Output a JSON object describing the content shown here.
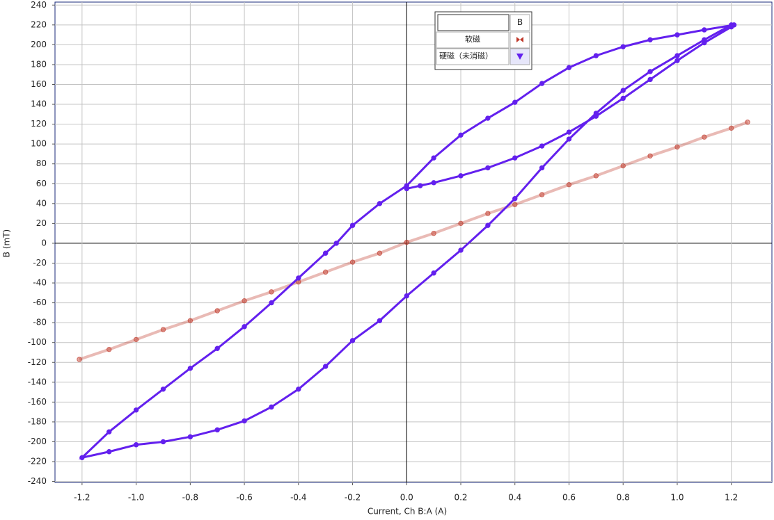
{
  "chart_data": {
    "type": "scatter",
    "x_label": "Current, Ch B:A (A)",
    "y_label": "B (mT)",
    "legend_title": "B",
    "xlim": [
      -1.3,
      1.35
    ],
    "ylim": [
      -241,
      243
    ],
    "xticks": [
      -1.2,
      {
        "value": -1,
        "label": "-1.0"
      },
      -0.8,
      -0.6,
      -0.4,
      -0.2,
      {
        "value": 0,
        "label": "0.0"
      },
      0.2,
      0.4,
      0.6,
      0.8,
      {
        "value": 1,
        "label": "1.0"
      },
      1.2
    ],
    "yticks": [
      -240,
      -220,
      -200,
      -180,
      -160,
      -140,
      -120,
      -100,
      -80,
      -60,
      -40,
      -20,
      0,
      20,
      40,
      60,
      80,
      100,
      120,
      140,
      160,
      180,
      200,
      220,
      240
    ],
    "grid": true,
    "series": [
      {
        "name": "软磁",
        "color": "#c0392b",
        "marker": "bowtie",
        "x": [
          -1.21,
          -1.1,
          -1.0,
          -0.9,
          -0.8,
          -0.7,
          -0.6,
          -0.5,
          -0.4,
          -0.3,
          -0.2,
          -0.1,
          0,
          0.1,
          0.2,
          0.3,
          0.4,
          0.5,
          0.6,
          0.7,
          0.8,
          0.9,
          1.0,
          1.1,
          1.2,
          1.26
        ],
        "values": [
          -117,
          -107,
          -97,
          -87,
          -78,
          -68,
          -58,
          -49,
          -39,
          -29,
          -19,
          -10,
          1,
          10,
          20,
          30,
          39,
          49,
          59,
          68,
          78,
          88,
          97,
          107,
          116,
          122
        ]
      },
      {
        "name": "硬磁（未消磁）",
        "color": "#6320ee",
        "marker": "triangle",
        "x": [
          0,
          0.05,
          0.1,
          0.2,
          0.3,
          0.4,
          0.5,
          0.6,
          0.7,
          0.8,
          0.9,
          1.0,
          1.1,
          1.2,
          1.21,
          1.1,
          1.0,
          0.9,
          0.8,
          0.7,
          0.6,
          0.5,
          0.4,
          0.3,
          0.2,
          0.1,
          0.0,
          -0.1,
          -0.2,
          -0.26,
          -0.3,
          -0.4,
          -0.5,
          -0.6,
          -0.7,
          -0.8,
          -0.9,
          -1.0,
          -1.1,
          -1.2,
          -1.1,
          -1.0,
          -0.9,
          -0.8,
          -0.7,
          -0.6,
          -0.5,
          -0.4,
          -0.3,
          -0.2,
          -0.1,
          0.0,
          0.1,
          0.2,
          0.3,
          0.4,
          0.5,
          0.6,
          0.7,
          0.8,
          0.9,
          1.0,
          1.1,
          1.2
        ],
        "values": [
          55,
          58,
          61,
          68,
          76,
          86,
          98,
          112,
          128,
          146,
          165,
          184,
          202,
          218,
          220,
          215,
          210,
          205,
          198,
          189,
          177,
          161,
          142,
          126,
          109,
          86,
          58,
          40,
          18,
          0,
          -10,
          -35,
          -60,
          -84,
          -106,
          -126,
          -147,
          -168,
          -190,
          -216,
          -210,
          -203,
          -200,
          -195,
          -188,
          -179,
          -165,
          -147,
          -124,
          -98,
          -78,
          -53,
          -30,
          -7,
          18,
          45,
          76,
          105,
          131,
          154,
          173,
          189,
          205,
          220
        ]
      }
    ]
  }
}
